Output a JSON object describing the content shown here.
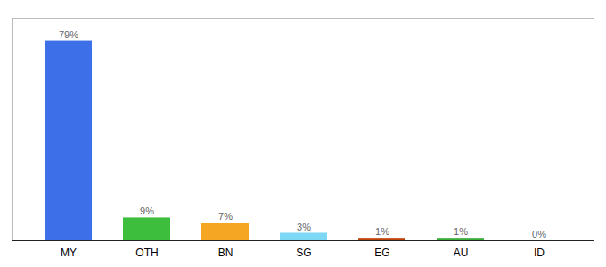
{
  "chart_data": {
    "type": "bar",
    "categories": [
      "MY",
      "OTH",
      "BN",
      "SG",
      "EG",
      "AU",
      "ID"
    ],
    "values": [
      79,
      9,
      7,
      3,
      1,
      1,
      0
    ],
    "value_labels": [
      "79%",
      "9%",
      "7%",
      "3%",
      "1%",
      "1%",
      "0%"
    ],
    "colors": [
      "#3d6fe8",
      "#3dbf3d",
      "#f5a623",
      "#7dd8f5",
      "#c0440a",
      "#3aad3a",
      "#cccccc"
    ],
    "ylim": [
      0,
      88
    ],
    "data_labels": true,
    "tick_labels": "x",
    "grid": false
  }
}
